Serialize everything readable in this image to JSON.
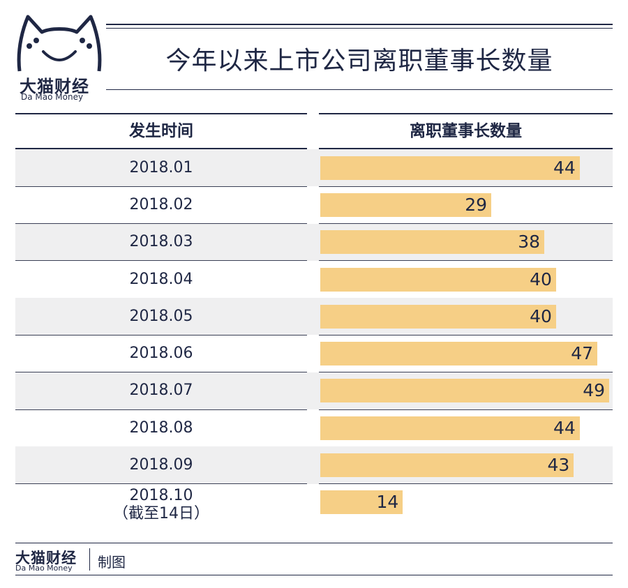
{
  "brand": {
    "name_cn": "大猫财经",
    "name_en": "Da Mao Money"
  },
  "chart_data": {
    "type": "bar",
    "orientation": "horizontal",
    "title": "今年以来上市公司离职董事长数量",
    "column_headers": [
      "发生时间",
      "离职董事长数量"
    ],
    "categories": [
      "2018.01",
      "2018.02",
      "2018.03",
      "2018.04",
      "2018.05",
      "2018.06",
      "2018.07",
      "2018.08",
      "2018.09",
      "2018.10\n（截至14日）"
    ],
    "values": [
      44,
      29,
      38,
      40,
      40,
      47,
      49,
      44,
      43,
      14
    ],
    "bar_color": "#f6cf86",
    "row_stripe_color": "#efeff0",
    "text_color": "#1f2744",
    "value_labels": "inside-end"
  },
  "footer": {
    "brand_cn": "大猫财经",
    "brand_en": "Da Mao Money",
    "label": "制图"
  }
}
